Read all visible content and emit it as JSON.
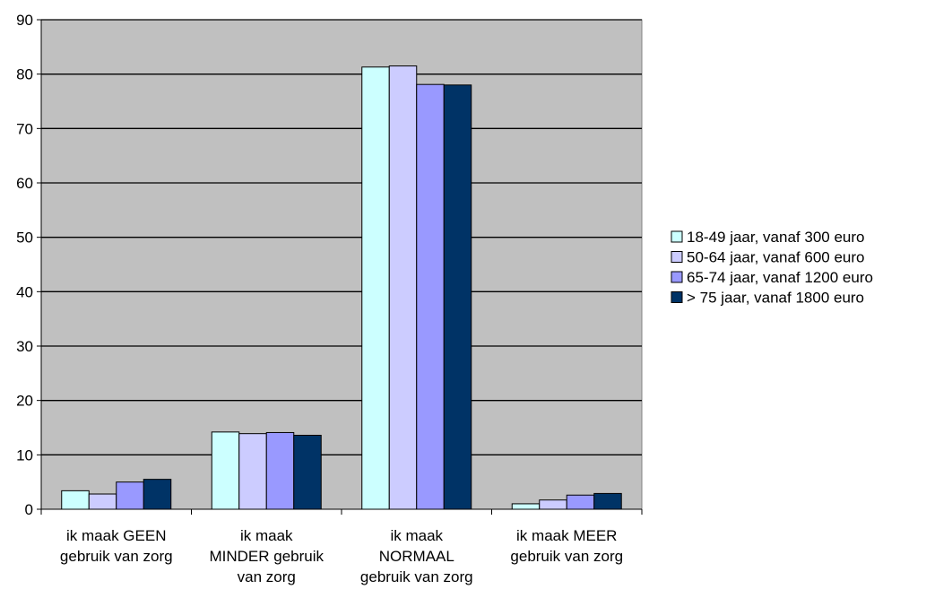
{
  "chart_data": {
    "type": "bar",
    "categories": [
      [
        "ik maak GEEN",
        "gebruik van zorg"
      ],
      [
        "ik maak",
        "MINDER gebruik",
        "van zorg"
      ],
      [
        "ik maak",
        "NORMAAL",
        "gebruik van zorg"
      ],
      [
        "ik maak MEER",
        "gebruik van zorg"
      ]
    ],
    "series": [
      {
        "name": "18-49 jaar, vanaf 300 euro",
        "color": "#CCFFFF",
        "values": [
          3.4,
          14.2,
          81.3,
          1.0
        ]
      },
      {
        "name": "50-64 jaar, vanaf 600 euro",
        "color": "#CCCCFF",
        "values": [
          2.8,
          13.9,
          81.5,
          1.7
        ]
      },
      {
        "name": "65-74 jaar, vanaf 1200 euro",
        "color": "#9999FF",
        "values": [
          5.0,
          14.1,
          78.1,
          2.6
        ]
      },
      {
        "name": "> 75 jaar, vanaf 1800 euro",
        "color": "#003366",
        "values": [
          5.5,
          13.6,
          78.0,
          2.9
        ]
      }
    ],
    "ylim": [
      0,
      90
    ],
    "yticks": [
      0,
      10,
      20,
      30,
      40,
      50,
      60,
      70,
      80,
      90
    ],
    "grid": true,
    "plot_background": "#C0C0C0",
    "legend_position": "right"
  }
}
